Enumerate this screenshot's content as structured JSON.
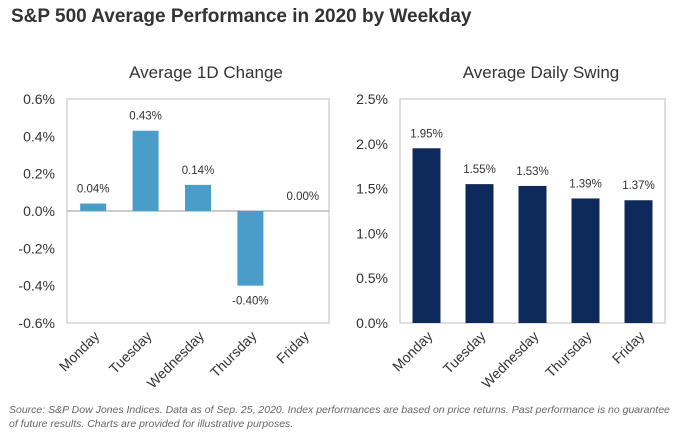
{
  "header": {
    "title": "S&P 500 Average Performance in 2020 by Weekday"
  },
  "footer": {
    "source": "Source: S&P Dow Jones Indices. Data as of Sep. 25, 2020. Index performances are based on price returns. Past performance is no guarantee of future results. Charts are provided for illustrative purposes."
  },
  "chart_data": [
    {
      "type": "bar",
      "title": "Average 1D Change",
      "categories": [
        "Monday",
        "Tuesday",
        "Wednesday",
        "Thursday",
        "Friday"
      ],
      "values": [
        0.04,
        0.43,
        0.14,
        -0.4,
        0.0
      ],
      "data_labels": [
        "0.04%",
        "0.43%",
        "0.14%",
        "-0.40%",
        "0.00%"
      ],
      "ylim": [
        -0.6,
        0.6
      ],
      "yticks": [
        0.6,
        0.4,
        0.2,
        0.0,
        -0.2,
        -0.4,
        -0.6
      ],
      "ytick_labels": [
        "0.6%",
        "0.4%",
        "0.2%",
        "0.0%",
        "-0.2%",
        "-0.4%",
        "-0.6%"
      ],
      "xlabel": "",
      "ylabel": "",
      "grid": false,
      "color": "#4a9cc9",
      "border_color": "#bfbfbf"
    },
    {
      "type": "bar",
      "title": "Average Daily Swing",
      "categories": [
        "Monday",
        "Tuesday",
        "Wednesday",
        "Thursday",
        "Friday"
      ],
      "values": [
        1.95,
        1.55,
        1.53,
        1.39,
        1.37
      ],
      "data_labels": [
        "1.95%",
        "1.55%",
        "1.53%",
        "1.39%",
        "1.37%"
      ],
      "ylim": [
        0,
        2.5
      ],
      "yticks": [
        2.5,
        2.0,
        1.5,
        1.0,
        0.5,
        0.0
      ],
      "ytick_labels": [
        "2.5%",
        "2.0%",
        "1.5%",
        "1.0%",
        "0.5%",
        "0.0%"
      ],
      "xlabel": "",
      "ylabel": "",
      "grid": false,
      "color": "#0e2a5c",
      "border_color": "#bfbfbf"
    }
  ]
}
